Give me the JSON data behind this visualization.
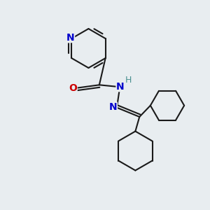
{
  "bg_color": "#e8edf0",
  "line_color": "#1a1a1a",
  "N_color": "#0000cc",
  "O_color": "#cc0000",
  "H_color": "#4a9090",
  "line_width": 1.5,
  "figsize": [
    3.0,
    3.0
  ],
  "dpi": 100,
  "xlim": [
    0,
    10
  ],
  "ylim": [
    0,
    10
  ]
}
